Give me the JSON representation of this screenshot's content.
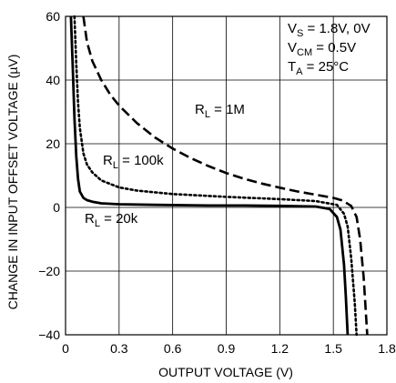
{
  "chart_data": {
    "type": "line",
    "xlabel": "OUTPUT VOLTAGE (V)",
    "ylabel": "CHANGE IN INPUT OFFSET VOLTAGE (µV)",
    "xlim": [
      0,
      1.8
    ],
    "ylim": [
      -40,
      60
    ],
    "x_ticks": [
      "0",
      "0.3",
      "0.6",
      "0.9",
      "1.2",
      "1.5",
      "1.8"
    ],
    "y_ticks": [
      "60",
      "40",
      "20",
      "0",
      "−20",
      "−40"
    ],
    "grid": true,
    "conditions": [
      {
        "main": "V",
        "sub": "S",
        "rest": " = 1.8V, 0V"
      },
      {
        "main": "V",
        "sub": "CM",
        "rest": " = 0.5V"
      },
      {
        "main": "T",
        "sub": "A",
        "rest": " = 25°C"
      }
    ],
    "series": [
      {
        "name": "R_L = 20k",
        "label_main": "R",
        "label_sub": "L",
        "label_rest": " = 20k",
        "style": "solid",
        "x": [
          0.03,
          0.04,
          0.05,
          0.06,
          0.07,
          0.08,
          0.1,
          0.12,
          0.15,
          0.2,
          0.3,
          0.5,
          0.8,
          1.0,
          1.2,
          1.4,
          1.48,
          1.52,
          1.54,
          1.56,
          1.57,
          1.58
        ],
        "y": [
          60,
          45,
          28,
          16,
          9,
          5,
          3,
          2.3,
          1.8,
          1.3,
          1,
          0.8,
          0.6,
          0.6,
          0.5,
          0.3,
          -0.5,
          -3,
          -7,
          -18,
          -28,
          -40
        ]
      },
      {
        "name": "R_L = 100k",
        "label_main": "R",
        "label_sub": "L",
        "label_rest": " = 100k",
        "style": "dotted",
        "x": [
          0.05,
          0.06,
          0.07,
          0.08,
          0.1,
          0.12,
          0.15,
          0.2,
          0.3,
          0.4,
          0.6,
          0.9,
          1.2,
          1.4,
          1.52,
          1.56,
          1.58,
          1.6,
          1.62,
          1.63
        ],
        "y": [
          60,
          45,
          33,
          25,
          17,
          13.5,
          11,
          8.5,
          6.3,
          5.3,
          4.2,
          3.3,
          2.6,
          2,
          0.8,
          -2,
          -6,
          -16,
          -30,
          -40
        ]
      },
      {
        "name": "R_L = 1M",
        "label_main": "R",
        "label_sub": "L",
        "label_rest": " = 1M",
        "style": "dashed",
        "x": [
          0.1,
          0.12,
          0.15,
          0.2,
          0.25,
          0.3,
          0.4,
          0.5,
          0.6,
          0.7,
          0.8,
          0.9,
          1.0,
          1.1,
          1.2,
          1.3,
          1.4,
          1.5,
          1.55,
          1.6,
          1.63,
          1.65,
          1.67,
          1.69
        ],
        "y": [
          60,
          52,
          46,
          40,
          35.5,
          32,
          26.5,
          22,
          18.5,
          15.5,
          13,
          10.8,
          9,
          7.5,
          6.2,
          5,
          4,
          3,
          2.2,
          0.5,
          -3,
          -10,
          -22,
          -40
        ]
      }
    ]
  }
}
